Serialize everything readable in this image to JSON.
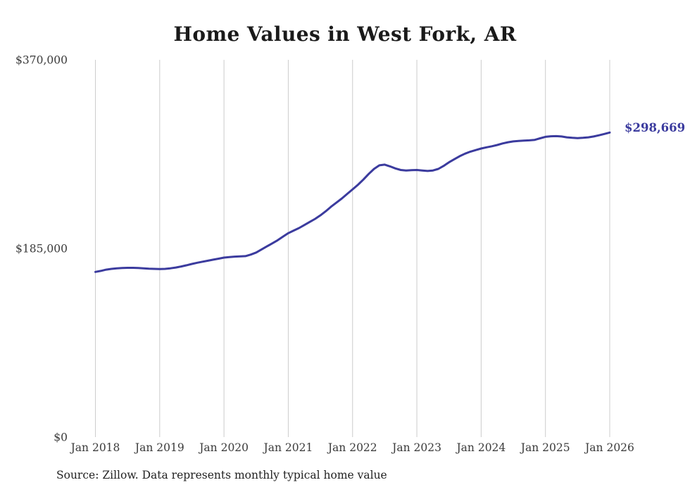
{
  "page": {
    "source_note": "Source: Zillow. Data represents monthly typical home value"
  },
  "chart_data": {
    "type": "line",
    "title": "Home Values in West Fork, AR",
    "xlabel": "",
    "ylabel": "",
    "legend": "none",
    "grid": "vertical-only",
    "ylim": [
      0,
      370000
    ],
    "y_ticks": [
      {
        "value": 0,
        "label": "$0"
      },
      {
        "value": 185000,
        "label": "$185,000"
      },
      {
        "value": 370000,
        "label": "$370,000"
      }
    ],
    "x_tick_labels": [
      "Jan 2018",
      "Jan 2019",
      "Jan 2020",
      "Jan 2021",
      "Jan 2022",
      "Jan 2023",
      "Jan 2024",
      "Jan 2025",
      "Jan 2026"
    ],
    "x_start": "2018-01",
    "x_end": "2026-01",
    "x_frequency": "monthly",
    "values": [
      162000,
      163000,
      164200,
      165000,
      165500,
      165800,
      166000,
      166000,
      165800,
      165500,
      165200,
      165000,
      164800,
      165000,
      165500,
      166300,
      167300,
      168500,
      169800,
      171000,
      172000,
      173000,
      174000,
      175000,
      176000,
      176500,
      177000,
      177200,
      177500,
      179000,
      181000,
      184000,
      187000,
      190000,
      193000,
      196500,
      200000,
      202500,
      205000,
      208000,
      211000,
      214000,
      217500,
      221500,
      226000,
      230000,
      234000,
      238500,
      243000,
      247500,
      252500,
      258000,
      263000,
      266500,
      267200,
      265500,
      263500,
      262000,
      261500,
      261800,
      262000,
      261500,
      261000,
      261500,
      263000,
      266000,
      269500,
      272500,
      275500,
      278000,
      280000,
      281500,
      283000,
      284200,
      285200,
      286500,
      288000,
      289200,
      290000,
      290500,
      290800,
      291000,
      291500,
      293000,
      294500,
      295000,
      295200,
      294800,
      294000,
      293500,
      293200,
      293500,
      294000,
      294800,
      296000,
      297300,
      298669
    ],
    "final_value": 298669,
    "end_label": "$298,669",
    "line_color": "#3b3b9e",
    "grid_color": "#cccccc",
    "axis_text_color": "#3a3a3a"
  }
}
